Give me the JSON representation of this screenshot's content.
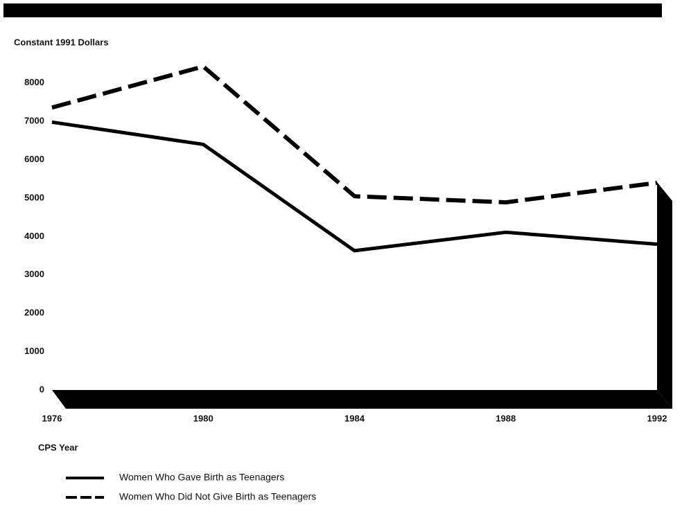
{
  "chart_data": {
    "type": "line",
    "ylabel": "Constant 1991 Dollars",
    "xlabel": "CPS Year",
    "x": [
      1976,
      1980,
      1984,
      1988,
      1992
    ],
    "xlim": [
      1976,
      1992
    ],
    "xticks": [
      1976,
      1980,
      1984,
      1988,
      1992
    ],
    "ylim": [
      0,
      9000
    ],
    "yticks": [
      0,
      1000,
      2000,
      3000,
      4000,
      5000,
      6000,
      7000,
      8000
    ],
    "series": [
      {
        "name": "Women Who Gave Birth as Teenagers",
        "color": "#000000",
        "style": "solid",
        "values": [
          6980,
          6400,
          3630,
          4110,
          3800
        ]
      },
      {
        "name": "Women Who Did Not Give Birth as Teenagers",
        "color": "#000000",
        "style": "dashed",
        "values": [
          7360,
          8430,
          5050,
          4890,
          5400
        ]
      }
    ]
  }
}
